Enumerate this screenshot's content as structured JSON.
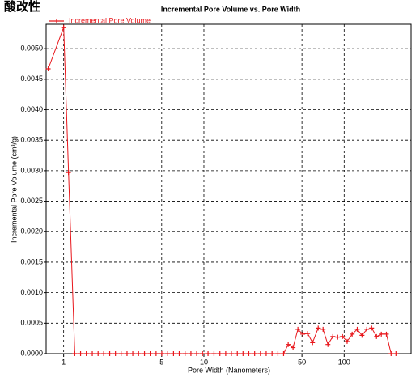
{
  "corner_label": "酸改性",
  "chart_data": {
    "type": "line",
    "title": "Incremental Pore Volume vs. Pore Width",
    "x_label": "Pore Width (Nanometers)",
    "y_label": "Incremental Pore Volume (cm³/g)",
    "x_scale": "log",
    "grid": true,
    "legend": "top-left",
    "xlim": [
      0.75,
      300
    ],
    "xticks": [
      1,
      5,
      10,
      50,
      100
    ],
    "ylim": [
      0,
      0.0054
    ],
    "yticks": [
      {
        "value": 0,
        "label": "0.0000"
      },
      {
        "value": 0.0005,
        "label": "0.0005"
      },
      {
        "value": 0.001,
        "label": "0.0010"
      },
      {
        "value": 0.0015,
        "label": "0.0015"
      },
      {
        "value": 0.002,
        "label": "0.0020"
      },
      {
        "value": 0.0025,
        "label": "0.0025"
      },
      {
        "value": 0.003,
        "label": "0.0030"
      },
      {
        "value": 0.0035,
        "label": "0.0035"
      },
      {
        "value": 0.004,
        "label": "0.0040"
      },
      {
        "value": 0.0045,
        "label": "0.0045"
      },
      {
        "value": 0.005,
        "label": "0.0050"
      }
    ],
    "x": [
      0.776,
      1.0,
      1.083,
      1.2,
      1.32,
      1.45,
      1.6,
      1.76,
      1.93,
      2.13,
      2.34,
      2.57,
      2.83,
      3.11,
      3.42,
      3.77,
      4.14,
      4.56,
      5.01,
      5.52,
      6.07,
      6.67,
      7.34,
      8.08,
      8.88,
      9.77,
      10.7,
      11.8,
      13.0,
      14.3,
      15.7,
      17.3,
      19.0,
      20.9,
      23.0,
      25.3,
      27.8,
      30.6,
      33.7,
      37.0,
      39.9,
      43.2,
      46.8,
      50.7,
      54.9,
      59.5,
      65.3,
      70.7,
      76.6,
      83,
      89.9,
      97.3,
      105,
      114,
      124,
      134,
      145,
      157,
      170,
      184,
      200,
      216,
      234
    ],
    "series": [
      {
        "name": "Incremental Pore Volume",
        "color": "#e8161b",
        "values": [
          0.00467,
          0.00535,
          0.00297,
          0,
          0,
          0,
          0,
          0,
          0,
          0,
          0,
          0,
          0,
          0,
          0,
          0,
          0,
          0,
          0,
          0,
          0,
          0,
          0,
          0,
          0,
          0,
          0,
          0,
          0,
          0,
          0,
          0,
          0,
          0,
          0,
          0,
          0,
          0,
          0,
          0,
          0.00015,
          0.0001,
          0.0004,
          0.00032,
          0.00033,
          0.00018,
          0.00042,
          0.0004,
          0.00015,
          0.00028,
          0.00027,
          0.00028,
          0.0002,
          0.00032,
          0.0004,
          0.0003,
          0.0004,
          0.00042,
          0.00028,
          0.00032,
          0.00032,
          0,
          0
        ]
      }
    ]
  }
}
